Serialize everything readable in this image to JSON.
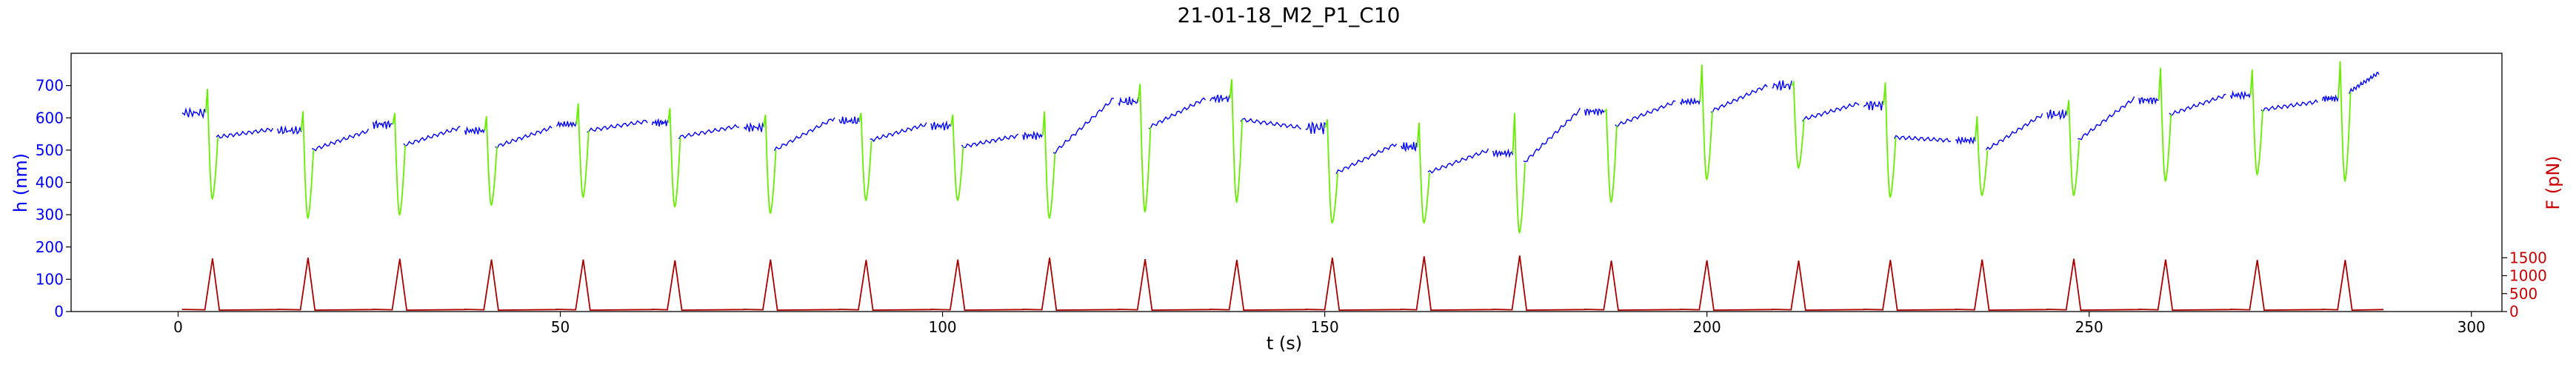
{
  "chart_data": {
    "type": "line",
    "title": "21-01-18_M2_P1_C10",
    "xlabel": "t (s)",
    "ylabel_left": "h (nm)",
    "ylabel_right": "F (pN)",
    "xlim": [
      -14,
      304
    ],
    "ylim_left": [
      0,
      800
    ],
    "ylim_right": [
      0,
      7200
    ],
    "x_ticks": [
      0,
      50,
      100,
      150,
      200,
      250,
      300
    ],
    "y_ticks_left": [
      0,
      100,
      200,
      300,
      400,
      500,
      600,
      700
    ],
    "y_ticks_right": [
      0,
      500,
      1000,
      1500
    ],
    "grid": false,
    "legend": "none",
    "colors": {
      "height": "#0000ff",
      "height_approach": "#66ee00",
      "force": "#aa0000",
      "left_axis": "#0000ff",
      "right_axis": "#cc0000"
    },
    "cycles": [
      {
        "t_start": 0.5,
        "t_event": 4.0,
        "h_before": 615,
        "h_after": 540,
        "h_end": 565,
        "h_max": 690,
        "h_min": 350,
        "f_peak": 1480
      },
      {
        "t_start": 13.0,
        "t_event": 16.5,
        "h_before": 560,
        "h_after": 500,
        "h_end": 560,
        "h_max": 620,
        "h_min": 290,
        "f_peak": 1500
      },
      {
        "t_start": 25.5,
        "t_event": 28.5,
        "h_before": 580,
        "h_after": 515,
        "h_end": 570,
        "h_max": 615,
        "h_min": 300,
        "f_peak": 1470
      },
      {
        "t_start": 37.5,
        "t_event": 40.5,
        "h_before": 560,
        "h_after": 510,
        "h_end": 570,
        "h_max": 605,
        "h_min": 330,
        "f_peak": 1450
      },
      {
        "t_start": 49.5,
        "t_event": 52.5,
        "h_before": 580,
        "h_after": 560,
        "h_end": 590,
        "h_max": 645,
        "h_min": 355,
        "f_peak": 1450
      },
      {
        "t_start": 62.0,
        "t_event": 64.5,
        "h_before": 585,
        "h_after": 540,
        "h_end": 575,
        "h_max": 630,
        "h_min": 325,
        "f_peak": 1430
      },
      {
        "t_start": 74.0,
        "t_event": 77.0,
        "h_before": 570,
        "h_after": 500,
        "h_end": 600,
        "h_max": 610,
        "h_min": 305,
        "f_peak": 1450
      },
      {
        "t_start": 86.5,
        "t_event": 89.5,
        "h_before": 590,
        "h_after": 530,
        "h_end": 580,
        "h_max": 615,
        "h_min": 345,
        "f_peak": 1440
      },
      {
        "t_start": 98.5,
        "t_event": 101.5,
        "h_before": 575,
        "h_after": 510,
        "h_end": 545,
        "h_max": 610,
        "h_min": 345,
        "f_peak": 1450
      },
      {
        "t_start": 110.5,
        "t_event": 113.5,
        "h_before": 545,
        "h_after": 490,
        "h_end": 660,
        "h_max": 620,
        "h_min": 290,
        "f_peak": 1500
      },
      {
        "t_start": 123.0,
        "t_event": 126.0,
        "h_before": 650,
        "h_after": 570,
        "h_end": 660,
        "h_max": 705,
        "h_min": 310,
        "f_peak": 1460
      },
      {
        "t_start": 135.0,
        "t_event": 138.0,
        "h_before": 660,
        "h_after": 595,
        "h_end": 570,
        "h_max": 720,
        "h_min": 340,
        "f_peak": 1440
      },
      {
        "t_start": 147.5,
        "t_event": 150.5,
        "h_before": 570,
        "h_after": 430,
        "h_end": 520,
        "h_max": 595,
        "h_min": 275,
        "f_peak": 1500
      },
      {
        "t_start": 160.0,
        "t_event": 162.5,
        "h_before": 510,
        "h_after": 430,
        "h_end": 500,
        "h_max": 585,
        "h_min": 275,
        "f_peak": 1540
      },
      {
        "t_start": 172.0,
        "t_event": 175.0,
        "h_before": 490,
        "h_after": 460,
        "h_end": 625,
        "h_max": 615,
        "h_min": 245,
        "f_peak": 1560
      },
      {
        "t_start": 184.0,
        "t_event": 187.0,
        "h_before": 620,
        "h_after": 575,
        "h_end": 650,
        "h_max": 625,
        "h_min": 340,
        "f_peak": 1420
      },
      {
        "t_start": 196.5,
        "t_event": 199.5,
        "h_before": 650,
        "h_after": 620,
        "h_end": 700,
        "h_max": 765,
        "h_min": 410,
        "f_peak": 1430
      },
      {
        "t_start": 208.5,
        "t_event": 211.5,
        "h_before": 700,
        "h_after": 595,
        "h_end": 645,
        "h_max": 710,
        "h_min": 445,
        "f_peak": 1420
      },
      {
        "t_start": 220.5,
        "t_event": 223.5,
        "h_before": 640,
        "h_after": 540,
        "h_end": 530,
        "h_max": 710,
        "h_min": 355,
        "f_peak": 1440
      },
      {
        "t_start": 232.5,
        "t_event": 235.5,
        "h_before": 530,
        "h_after": 500,
        "h_end": 610,
        "h_max": 605,
        "h_min": 360,
        "f_peak": 1450
      },
      {
        "t_start": 244.5,
        "t_event": 247.5,
        "h_before": 610,
        "h_after": 530,
        "h_end": 660,
        "h_max": 655,
        "h_min": 360,
        "f_peak": 1470
      },
      {
        "t_start": 256.5,
        "t_event": 259.5,
        "h_before": 655,
        "h_after": 610,
        "h_end": 670,
        "h_max": 755,
        "h_min": 405,
        "f_peak": 1450
      },
      {
        "t_start": 268.5,
        "t_event": 271.5,
        "h_before": 670,
        "h_after": 625,
        "h_end": 650,
        "h_max": 750,
        "h_min": 425,
        "f_peak": 1440
      },
      {
        "t_start": 280.5,
        "t_event": 283.0,
        "h_before": 660,
        "h_after": 680,
        "h_end": 740,
        "h_max": 775,
        "h_min": 405,
        "f_peak": 1440
      }
    ],
    "t_end": 288.5,
    "f_baseline": 50
  }
}
